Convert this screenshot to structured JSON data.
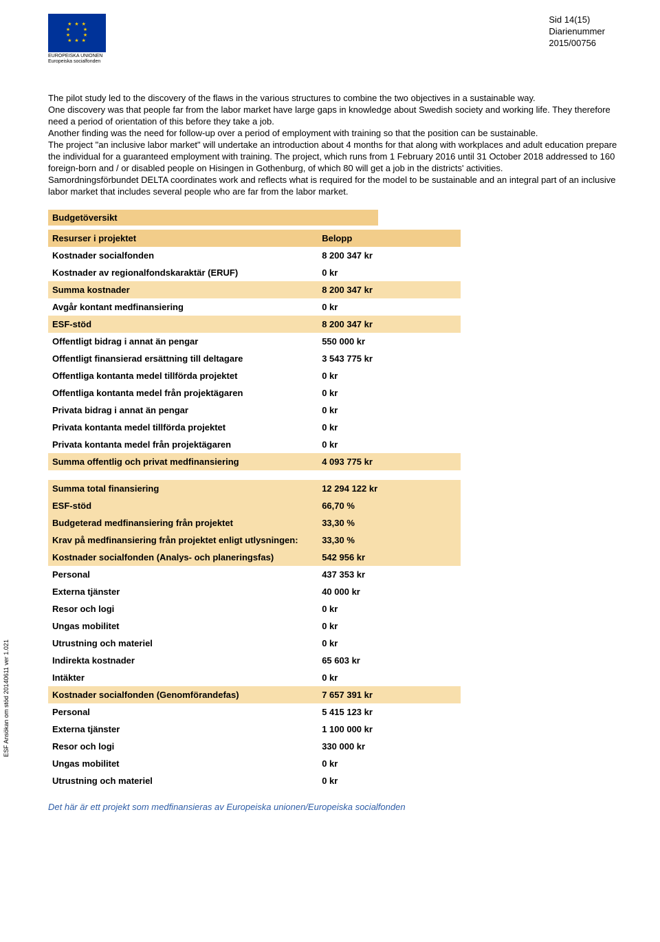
{
  "header": {
    "logo_caption1": "EUROPEISKA UNIONEN",
    "logo_caption2": "Europeiska socialfonden",
    "page_label": "Sid 14(15)",
    "diary_label": "Diarienummer",
    "diary_number": "2015/00756"
  },
  "paragraphs": {
    "p1": "The pilot study led to the discovery of the flaws in the various structures to combine the two objectives in a sustainable way.",
    "p2": "One discovery was that people far from the labor market have large gaps in knowledge about Swedish society and working life. They therefore need a period of orientation of this before they take a job.",
    "p3": "Another finding was the need for follow-up over a period of employment with training so that the position can be sustainable.",
    "p4": "The project \"an inclusive labor market\" will undertake an introduction about 4 months for that along with workplaces and adult education prepare the individual for a guaranteed employment with training. The project, which runs from 1 February 2016 until 31 October 2018 addressed to 160 foreign-born and / or disabled people on Hisingen in Gothenburg, of which 80 will get a job in the districts' activities.",
    "p5": "Samordningsförbundet DELTA coordinates work and reflects what is required for the model to be sustainable and an integral part of an inclusive labor market that includes several people who are far from the labor market."
  },
  "section_title": "Budgetöversikt",
  "table": {
    "col_resources": "Resurser i projektet",
    "col_amount": "Belopp",
    "rows1": [
      {
        "label": "Kostnader socialfonden",
        "value": "8 200 347 kr",
        "hl": false
      },
      {
        "label": "Kostnader av regionalfondskaraktär (ERUF)",
        "value": "0 kr",
        "hl": false
      },
      {
        "label": "Summa kostnader",
        "value": "8 200 347 kr",
        "hl": true
      },
      {
        "label": "Avgår kontant medfinansiering",
        "value": "0 kr",
        "hl": false
      },
      {
        "label": "ESF-stöd",
        "value": "8 200 347 kr",
        "hl": true
      },
      {
        "label": "Offentligt bidrag i annat än pengar",
        "value": "550 000 kr",
        "hl": false
      },
      {
        "label": "Offentligt finansierad ersättning till deltagare",
        "value": "3 543 775 kr",
        "hl": false
      },
      {
        "label": "Offentliga kontanta medel tillförda projektet",
        "value": "0 kr",
        "hl": false
      },
      {
        "label": "Offentliga kontanta medel från projektägaren",
        "value": "0 kr",
        "hl": false
      },
      {
        "label": "Privata bidrag i annat än pengar",
        "value": "0 kr",
        "hl": false
      },
      {
        "label": "Privata kontanta medel tillförda projektet",
        "value": "0 kr",
        "hl": false
      },
      {
        "label": "Privata kontanta medel från projektägaren",
        "value": "0 kr",
        "hl": false
      },
      {
        "label": "Summa offentlig och privat medfinansiering",
        "value": "4 093 775 kr",
        "hl": true
      }
    ],
    "rows2": [
      {
        "label": "Summa total finansiering",
        "value": "12 294 122 kr",
        "hl": true
      },
      {
        "label": "ESF-stöd",
        "value": "66,70 %",
        "hl": true
      },
      {
        "label": "Budgeterad medfinansiering från projektet",
        "value": "33,30 %",
        "hl": true
      },
      {
        "label": "Krav på medfinansiering från projektet enligt utlysningen:",
        "value": "33,30 %",
        "hl": true
      }
    ],
    "rows3": [
      {
        "label": "Kostnader socialfonden (Analys- och planeringsfas)",
        "value": "542 956 kr",
        "hl": true
      },
      {
        "label": "Personal",
        "value": "437 353 kr",
        "hl": false
      },
      {
        "label": "Externa  tjänster",
        "value": "40 000 kr",
        "hl": false
      },
      {
        "label": "Resor och logi",
        "value": "0 kr",
        "hl": false
      },
      {
        "label": "Ungas mobilitet",
        "value": "0 kr",
        "hl": false
      },
      {
        "label": "Utrustning och materiel",
        "value": "0 kr",
        "hl": false
      },
      {
        "label": "Indirekta kostnader",
        "value": "65 603 kr",
        "hl": false
      },
      {
        "label": "Intäkter",
        "value": "0 kr",
        "hl": false
      },
      {
        "label": "Kostnader socialfonden (Genomförandefas)",
        "value": "7 657 391 kr",
        "hl": true
      },
      {
        "label": "Personal",
        "value": "5 415 123 kr",
        "hl": false
      },
      {
        "label": "Externa  tjänster",
        "value": "1 100 000 kr",
        "hl": false
      },
      {
        "label": "Resor och logi",
        "value": "330 000 kr",
        "hl": false
      },
      {
        "label": "Ungas mobilitet",
        "value": "0 kr",
        "hl": false
      },
      {
        "label": "Utrustning och materiel",
        "value": "0 kr",
        "hl": false
      }
    ]
  },
  "footer": "Det här är ett projekt som medfinansieras av Europeiska unionen/Europeiska socialfonden",
  "side": "ESF Ansökan om stöd 20140611 ver 1.021",
  "colors": {
    "header_bg": "#f2cd8a",
    "row_hl_bg": "#f8dfac",
    "footer_color": "#2d5ca6",
    "eu_blue": "#003399",
    "eu_gold": "#ffcc00"
  }
}
